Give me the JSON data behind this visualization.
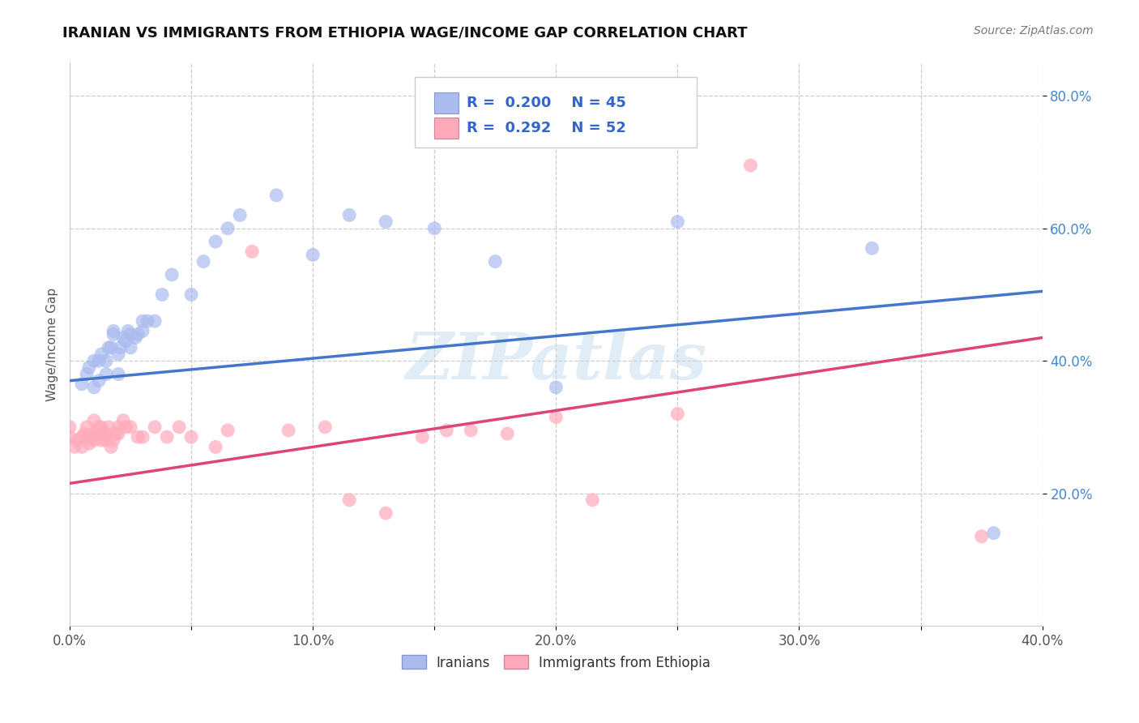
{
  "title": "IRANIAN VS IMMIGRANTS FROM ETHIOPIA WAGE/INCOME GAP CORRELATION CHART",
  "source": "Source: ZipAtlas.com",
  "ylabel": "Wage/Income Gap",
  "xlim": [
    0.0,
    0.4
  ],
  "ylim": [
    0.0,
    0.85
  ],
  "xtick_labels": [
    "0.0%",
    "",
    "10.0%",
    "",
    "20.0%",
    "",
    "30.0%",
    "",
    "40.0%"
  ],
  "xtick_vals": [
    0.0,
    0.05,
    0.1,
    0.15,
    0.2,
    0.25,
    0.3,
    0.35,
    0.4
  ],
  "ytick_labels": [
    "20.0%",
    "40.0%",
    "60.0%",
    "80.0%"
  ],
  "ytick_vals": [
    0.2,
    0.4,
    0.6,
    0.8
  ],
  "grid_color": "#cccccc",
  "background_color": "#ffffff",
  "iranians_color": "#aabbee",
  "ethiopia_color": "#ffaabb",
  "iranians_line_color": "#4477cc",
  "ethiopia_line_color": "#dd4477",
  "R_iranians": 0.2,
  "N_iranians": 45,
  "R_ethiopia": 0.292,
  "N_ethiopia": 52,
  "legend_labels": [
    "Iranians",
    "Immigrants from Ethiopia"
  ],
  "watermark": "ZIPatlas",
  "iran_line_x0": 0.0,
  "iran_line_y0": 0.37,
  "iran_line_x1": 0.4,
  "iran_line_y1": 0.505,
  "eth_line_x0": 0.0,
  "eth_line_y0": 0.215,
  "eth_line_x1": 0.4,
  "eth_line_y1": 0.435,
  "iranians_x": [
    0.005,
    0.007,
    0.008,
    0.01,
    0.01,
    0.012,
    0.012,
    0.013,
    0.015,
    0.015,
    0.016,
    0.017,
    0.018,
    0.018,
    0.02,
    0.02,
    0.021,
    0.022,
    0.023,
    0.024,
    0.025,
    0.025,
    0.027,
    0.028,
    0.03,
    0.03,
    0.032,
    0.035,
    0.038,
    0.042,
    0.05,
    0.055,
    0.06,
    0.065,
    0.07,
    0.085,
    0.1,
    0.115,
    0.13,
    0.15,
    0.175,
    0.2,
    0.25,
    0.33,
    0.38
  ],
  "iranians_y": [
    0.365,
    0.38,
    0.39,
    0.36,
    0.4,
    0.37,
    0.4,
    0.41,
    0.38,
    0.4,
    0.42,
    0.42,
    0.44,
    0.445,
    0.38,
    0.41,
    0.42,
    0.435,
    0.43,
    0.445,
    0.42,
    0.44,
    0.435,
    0.44,
    0.445,
    0.46,
    0.46,
    0.46,
    0.5,
    0.53,
    0.5,
    0.55,
    0.58,
    0.6,
    0.62,
    0.65,
    0.56,
    0.62,
    0.61,
    0.6,
    0.55,
    0.36,
    0.61,
    0.57,
    0.14
  ],
  "ethiopia_x": [
    0.0,
    0.0,
    0.002,
    0.003,
    0.005,
    0.005,
    0.006,
    0.007,
    0.008,
    0.008,
    0.009,
    0.01,
    0.01,
    0.01,
    0.011,
    0.012,
    0.013,
    0.013,
    0.014,
    0.015,
    0.015,
    0.016,
    0.017,
    0.018,
    0.019,
    0.02,
    0.02,
    0.022,
    0.023,
    0.025,
    0.028,
    0.03,
    0.035,
    0.04,
    0.045,
    0.05,
    0.06,
    0.065,
    0.075,
    0.09,
    0.105,
    0.115,
    0.13,
    0.145,
    0.155,
    0.165,
    0.18,
    0.2,
    0.215,
    0.25,
    0.28,
    0.375
  ],
  "ethiopia_y": [
    0.285,
    0.3,
    0.27,
    0.28,
    0.27,
    0.285,
    0.29,
    0.3,
    0.275,
    0.285,
    0.285,
    0.28,
    0.29,
    0.31,
    0.29,
    0.3,
    0.28,
    0.3,
    0.29,
    0.28,
    0.29,
    0.3,
    0.27,
    0.28,
    0.29,
    0.3,
    0.29,
    0.31,
    0.3,
    0.3,
    0.285,
    0.285,
    0.3,
    0.285,
    0.3,
    0.285,
    0.27,
    0.295,
    0.565,
    0.295,
    0.3,
    0.19,
    0.17,
    0.285,
    0.295,
    0.295,
    0.29,
    0.315,
    0.19,
    0.32,
    0.695,
    0.135
  ]
}
